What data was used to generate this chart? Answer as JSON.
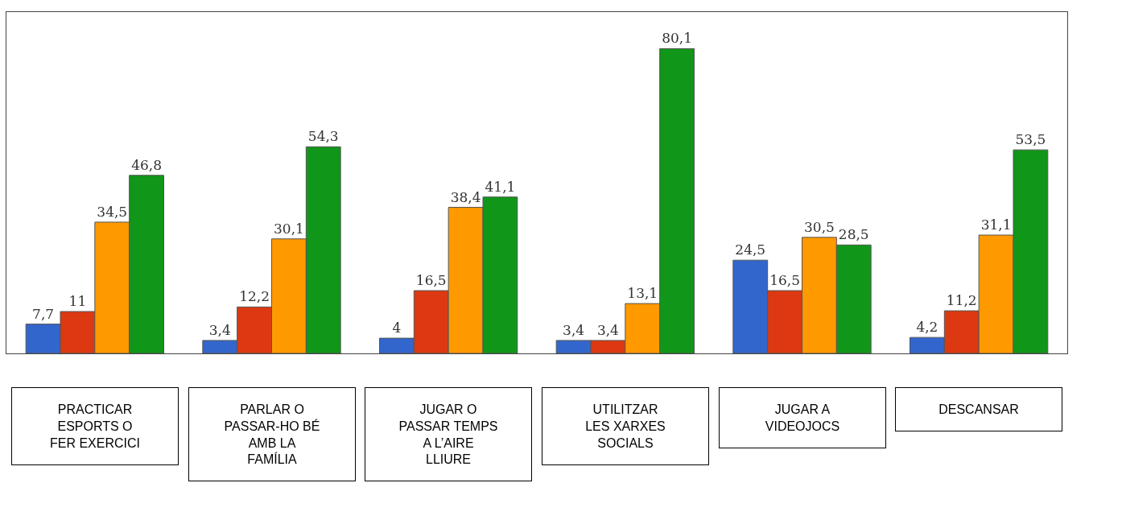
{
  "chart_data": {
    "type": "bar",
    "categories": [
      "PRACTICAR ESPORTS O FER EXERCICI",
      "PARLAR O PASSAR-HO BÉ AMB LA FAMÍLIA",
      "JUGAR O PASSAR TEMPS A L’AIRE LLIURE",
      "UTILITZAR LES XARXES SOCIALS",
      "JUGAR A VIDEOJOCS",
      "DESCANSAR"
    ],
    "series": [
      {
        "color": "#3366cc",
        "values": [
          7.7,
          3.4,
          4,
          3.4,
          24.5,
          4.2
        ],
        "value_labels": [
          "7,7",
          "3,4",
          "4",
          "3,4",
          "24,5",
          "4,2"
        ]
      },
      {
        "color": "#dc3912",
        "values": [
          11,
          12.2,
          16.5,
          3.4,
          16.5,
          11.2
        ],
        "value_labels": [
          "11",
          "12,2",
          "16,5",
          "3,4",
          "16,5",
          "11,2"
        ]
      },
      {
        "color": "#ff9900",
        "values": [
          34.5,
          30.1,
          38.4,
          13.1,
          30.5,
          31.1
        ],
        "value_labels": [
          "34,5",
          "30,1",
          "38,4",
          "13,1",
          "30,5",
          "31,1"
        ]
      },
      {
        "color": "#109618",
        "values": [
          46.8,
          54.3,
          41.1,
          80.1,
          28.5,
          53.5
        ],
        "value_labels": [
          "46,8",
          "54,3",
          "41,1",
          "80,1",
          "28,5",
          "53,5"
        ]
      }
    ]
  }
}
